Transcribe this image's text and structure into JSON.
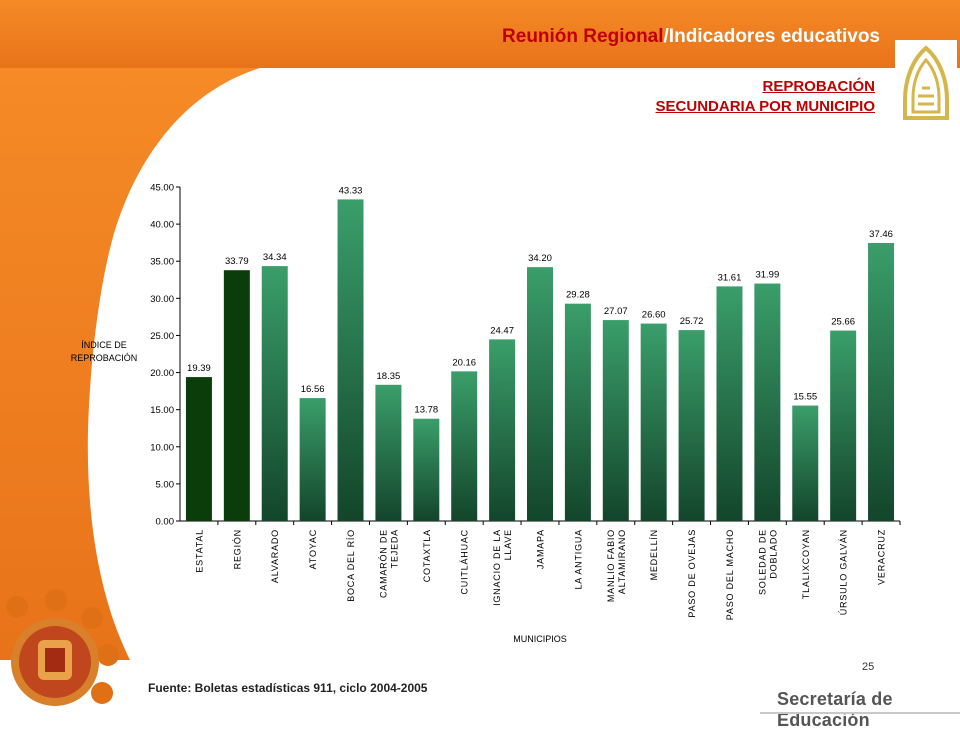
{
  "header": {
    "title_accent": "Reunión Regional",
    "title_rest": "/Indicadores educativos"
  },
  "subtitle": {
    "line1": "REPROBACIÓN",
    "line2": "SECUNDARIA POR MUNICIPIO"
  },
  "source": "Fuente: Boletas estadísticas  911, ciclo 2004-2005",
  "page_number": "25",
  "footer": {
    "org": "Secretaría de Educación"
  },
  "colors": {
    "orange": "#f07f1e",
    "bar_dark": "#0b3d0b",
    "bar_green_top": "#3a9e6a",
    "bar_green_bottom": "#13452b",
    "title_red": "#c00000"
  },
  "chart_data": {
    "type": "bar",
    "ylabel_lines": [
      "ÍNDICE DE",
      "REPROBACIÓN"
    ],
    "xlabel": "MUNICIPIOS",
    "ylim": [
      0,
      45
    ],
    "yticks": [
      "0.00",
      "5.00",
      "10.00",
      "15.00",
      "20.00",
      "25.00",
      "30.00",
      "35.00",
      "40.00",
      "45.00"
    ],
    "grid": false,
    "categories": [
      [
        "ESTATAL"
      ],
      [
        "REGIÓN"
      ],
      [
        "ALVARADO"
      ],
      [
        "ATOYAC"
      ],
      [
        "BOCA DEL RÍO"
      ],
      [
        "CAMARÓN DE",
        "TEJEDA"
      ],
      [
        "COTAXTLA"
      ],
      [
        "CUITLÁHUAC"
      ],
      [
        "IGNACIO DE LA",
        "LLAVE"
      ],
      [
        "JAMAPA"
      ],
      [
        "LA ANTIGUA"
      ],
      [
        "MANLIO FABIO",
        "ALTAMIRANO"
      ],
      [
        "MEDELLÍN"
      ],
      [
        "PASO DE OVEJAS"
      ],
      [
        "PASO DEL MACHO"
      ],
      [
        "SOLEDAD DE",
        "DOBLADO"
      ],
      [
        "TLALIXCOYAN"
      ],
      [
        "ÚRSULO GALVÁN"
      ],
      [
        "VERACRUZ"
      ]
    ],
    "values": [
      19.39,
      33.79,
      34.34,
      16.56,
      43.33,
      18.35,
      13.78,
      20.16,
      24.47,
      34.2,
      29.28,
      27.07,
      26.6,
      25.72,
      31.61,
      31.99,
      15.55,
      25.66,
      37.46
    ],
    "value_labels": [
      "19.39",
      "33.79",
      "34.34",
      "16.56",
      "43.33",
      "18.35",
      "13.78",
      "20.16",
      "24.47",
      "34.20",
      "29.28",
      "27.07",
      "26.60",
      "25.72",
      "31.61",
      "31.99",
      "15.55",
      "25.66",
      "37.46"
    ],
    "highlight": [
      "dark",
      "dark",
      "green",
      "green",
      "green",
      "green",
      "green",
      "green",
      "green",
      "green",
      "green",
      "green",
      "green",
      "green",
      "green",
      "green",
      "green",
      "green",
      "green"
    ]
  }
}
